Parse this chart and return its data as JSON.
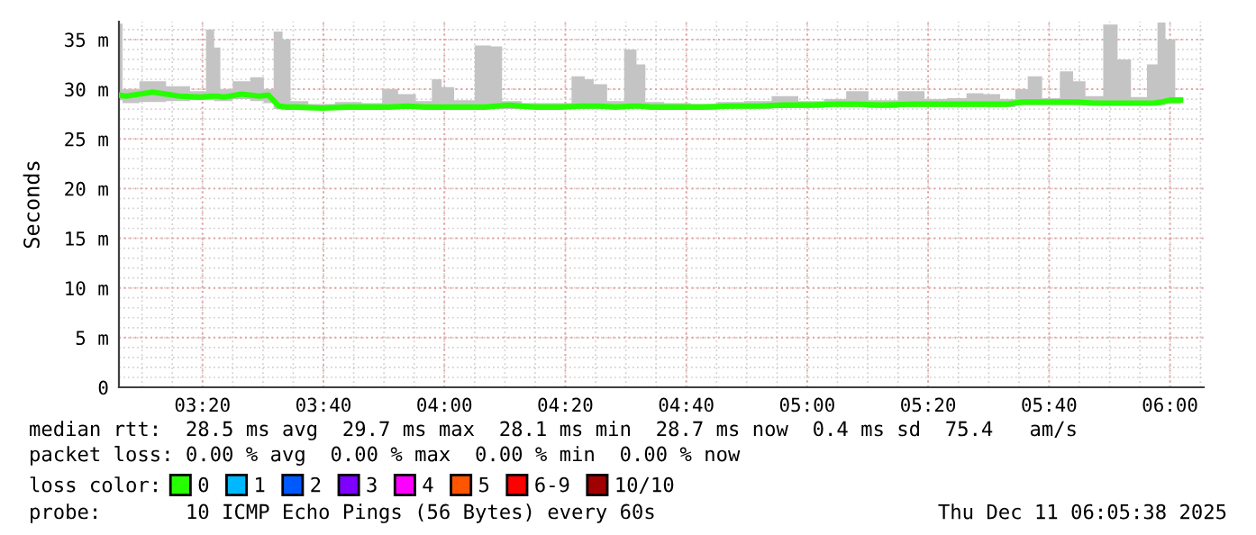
{
  "chart_data": {
    "type": "line",
    "ylabel": "Seconds",
    "legend_title": "loss color:",
    "legend": "bottom",
    "grid": true,
    "xlim": [
      3.103,
      6.093
    ],
    "ylim": [
      0,
      36.8
    ],
    "xticks": [
      {
        "value": 3.3333,
        "label": "03:20"
      },
      {
        "value": 3.6667,
        "label": "03:40"
      },
      {
        "value": 4,
        "label": "04:00"
      },
      {
        "value": 4.3333,
        "label": "04:20"
      },
      {
        "value": 4.6667,
        "label": "04:40"
      },
      {
        "value": 5,
        "label": "05:00"
      },
      {
        "value": 5.3333,
        "label": "05:20"
      },
      {
        "value": 5.6667,
        "label": "05:40"
      },
      {
        "value": 6,
        "label": "06:00"
      }
    ],
    "yticks": [
      0,
      {
        "value": 5,
        "label": "5 m"
      },
      {
        "value": 10,
        "label": "10 m"
      },
      {
        "value": 15,
        "label": "15 m"
      },
      {
        "value": 20,
        "label": "20 m"
      },
      {
        "value": 25,
        "label": "25 m"
      },
      {
        "value": 30,
        "label": "30 m"
      },
      {
        "value": 35,
        "label": "35 m"
      }
    ],
    "x": [
      3.103,
      3.123,
      3.196,
      3.27,
      3.328,
      3.358,
      3.373,
      3.392,
      3.441,
      3.49,
      3.515,
      3.544,
      3.564,
      3.588,
      3.662,
      3.735,
      3.809,
      3.848,
      3.897,
      3.946,
      3.985,
      4.0,
      4.054,
      4.113,
      4.142,
      4.176,
      4.25,
      4.324,
      4.377,
      4.397,
      4.426,
      4.471,
      4.52,
      4.539,
      4.569,
      4.642,
      4.716,
      4.789,
      4.863,
      4.941,
      5.01,
      5.083,
      5.132,
      5.206,
      5.294,
      5.353,
      5.417,
      5.461,
      5.51,
      5.554,
      5.593,
      5.623,
      5.672,
      5.721,
      5.745,
      5.789,
      5.843,
      5.868,
      5.917,
      5.956,
      5.975,
      6.0,
      6.029
    ],
    "series": [
      {
        "name": "0",
        "color": "#26ff00",
        "values": [
          29.4,
          29.3,
          29.7,
          29.3,
          29.2,
          29.3,
          29.3,
          29.2,
          29.5,
          29.3,
          29.4,
          28.3,
          28.2,
          28.2,
          28.1,
          28.2,
          28.2,
          28.2,
          28.3,
          28.2,
          28.2,
          28.2,
          28.2,
          28.2,
          28.3,
          28.4,
          28.2,
          28.2,
          28.3,
          28.3,
          28.3,
          28.2,
          28.3,
          28.3,
          28.2,
          28.2,
          28.2,
          28.3,
          28.3,
          28.4,
          28.4,
          28.5,
          28.5,
          28.4,
          28.5,
          28.5,
          28.5,
          28.5,
          28.5,
          28.5,
          28.7,
          28.7,
          28.7,
          28.7,
          28.7,
          28.6,
          28.6,
          28.6,
          28.6,
          28.6,
          28.7,
          28.9,
          28.9
        ],
        "lower": [
          28.9,
          28.6,
          28.7,
          28.8,
          28.9,
          28.9,
          28.8,
          28.8,
          29.0,
          28.8,
          28.6,
          28.0,
          28.0,
          28.0,
          27.9,
          28.0,
          28.0,
          28.0,
          28.0,
          28.0,
          27.9,
          28.0,
          28.0,
          28.0,
          28.0,
          28.0,
          28.0,
          28.0,
          28.0,
          28.0,
          28.0,
          28.0,
          28.0,
          28.0,
          28.0,
          28.0,
          27.9,
          28.0,
          28.0,
          28.1,
          28.1,
          28.2,
          28.2,
          28.1,
          28.2,
          28.2,
          28.2,
          28.2,
          28.2,
          28.2,
          28.4,
          28.4,
          28.4,
          28.4,
          28.4,
          28.4,
          28.4,
          28.4,
          28.4,
          28.4,
          28.4,
          28.5,
          28.5
        ],
        "upper": [
          36.6,
          30.0,
          30.8,
          30.3,
          29.8,
          36.0,
          34.2,
          30.0,
          30.8,
          31.2,
          30.0,
          35.8,
          35.0,
          28.8,
          28.5,
          28.7,
          28.6,
          30.0,
          29.5,
          28.8,
          31.0,
          30.2,
          28.9,
          34.4,
          34.3,
          28.8,
          28.6,
          28.6,
          31.3,
          31.0,
          30.5,
          28.8,
          34.0,
          32.5,
          28.7,
          28.6,
          28.5,
          28.7,
          28.8,
          29.3,
          28.8,
          29.0,
          29.8,
          28.9,
          29.8,
          29.0,
          29.1,
          29.6,
          29.5,
          29.0,
          30.0,
          31.3,
          29.1,
          31.8,
          30.8,
          29.3,
          36.5,
          33.0,
          29.2,
          32.5,
          36.7,
          35.0,
          29.0
        ]
      },
      {
        "name": "1",
        "color": "#00b8ff",
        "values": [
          null,
          null,
          null,
          null,
          null,
          null,
          null,
          null,
          null,
          null,
          null,
          null,
          null,
          null,
          null,
          null,
          null,
          null,
          null,
          null,
          null,
          null,
          null,
          null,
          null,
          null,
          null,
          null,
          null,
          null,
          null,
          null,
          null,
          null,
          null,
          null,
          null,
          null,
          null,
          null,
          null,
          null,
          null,
          null,
          null,
          null,
          null,
          null,
          null,
          null,
          null,
          null,
          null,
          null,
          null,
          null,
          null,
          null,
          null,
          null,
          null,
          null,
          null
        ]
      },
      {
        "name": "2",
        "color": "#0059ff",
        "values": [
          null,
          null,
          null,
          null,
          null,
          null,
          null,
          null,
          null,
          null,
          null,
          null,
          null,
          null,
          null,
          null,
          null,
          null,
          null,
          null,
          null,
          null,
          null,
          null,
          null,
          null,
          null,
          null,
          null,
          null,
          null,
          null,
          null,
          null,
          null,
          null,
          null,
          null,
          null,
          null,
          null,
          null,
          null,
          null,
          null,
          null,
          null,
          null,
          null,
          null,
          null,
          null,
          null,
          null,
          null,
          null,
          null,
          null,
          null,
          null,
          null,
          null,
          null
        ]
      },
      {
        "name": "3",
        "color": "#7e00ff",
        "values": [
          null,
          null,
          null,
          null,
          null,
          null,
          null,
          null,
          null,
          null,
          null,
          null,
          null,
          null,
          null,
          null,
          null,
          null,
          null,
          null,
          null,
          null,
          null,
          null,
          null,
          null,
          null,
          null,
          null,
          null,
          null,
          null,
          null,
          null,
          null,
          null,
          null,
          null,
          null,
          null,
          null,
          null,
          null,
          null,
          null,
          null,
          null,
          null,
          null,
          null,
          null,
          null,
          null,
          null,
          null,
          null,
          null,
          null,
          null,
          null,
          null,
          null,
          null
        ]
      },
      {
        "name": "4",
        "color": "#ff00ff",
        "values": [
          null,
          null,
          null,
          null,
          null,
          null,
          null,
          null,
          null,
          null,
          null,
          null,
          null,
          null,
          null,
          null,
          null,
          null,
          null,
          null,
          null,
          null,
          null,
          null,
          null,
          null,
          null,
          null,
          null,
          null,
          null,
          null,
          null,
          null,
          null,
          null,
          null,
          null,
          null,
          null,
          null,
          null,
          null,
          null,
          null,
          null,
          null,
          null,
          null,
          null,
          null,
          null,
          null,
          null,
          null,
          null,
          null,
          null,
          null,
          null,
          null,
          null,
          null
        ]
      },
      {
        "name": "5",
        "color": "#ff5500",
        "values": [
          null,
          null,
          null,
          null,
          null,
          null,
          null,
          null,
          null,
          null,
          null,
          null,
          null,
          null,
          null,
          null,
          null,
          null,
          null,
          null,
          null,
          null,
          null,
          null,
          null,
          null,
          null,
          null,
          null,
          null,
          null,
          null,
          null,
          null,
          null,
          null,
          null,
          null,
          null,
          null,
          null,
          null,
          null,
          null,
          null,
          null,
          null,
          null,
          null,
          null,
          null,
          null,
          null,
          null,
          null,
          null,
          null,
          null,
          null,
          null,
          null,
          null,
          null
        ]
      },
      {
        "name": "6-9",
        "color": "#ff0000",
        "values": [
          null,
          null,
          null,
          null,
          null,
          null,
          null,
          null,
          null,
          null,
          null,
          null,
          null,
          null,
          null,
          null,
          null,
          null,
          null,
          null,
          null,
          null,
          null,
          null,
          null,
          null,
          null,
          null,
          null,
          null,
          null,
          null,
          null,
          null,
          null,
          null,
          null,
          null,
          null,
          null,
          null,
          null,
          null,
          null,
          null,
          null,
          null,
          null,
          null,
          null,
          null,
          null,
          null,
          null,
          null,
          null,
          null,
          null,
          null,
          null,
          null,
          null,
          null
        ]
      },
      {
        "name": "10/10",
        "color": "#a10000",
        "values": [
          null,
          null,
          null,
          null,
          null,
          null,
          null,
          null,
          null,
          null,
          null,
          null,
          null,
          null,
          null,
          null,
          null,
          null,
          null,
          null,
          null,
          null,
          null,
          null,
          null,
          null,
          null,
          null,
          null,
          null,
          null,
          null,
          null,
          null,
          null,
          null,
          null,
          null,
          null,
          null,
          null,
          null,
          null,
          null,
          null,
          null,
          null,
          null,
          null,
          null,
          null,
          null,
          null,
          null,
          null,
          null,
          null,
          null,
          null,
          null,
          null,
          null,
          null
        ]
      }
    ],
    "annotations": [
      "median rtt:  28.5 ms avg  29.7 ms max  28.1 ms min  28.7 ms now  0.4 ms sd  75.4   am/s",
      "packet loss: 0.00 % avg  0.00 % max  0.00 % min  0.00 % now",
      "probe:       10 ICMP Echo Pings (56 Bytes) every 60s",
      "Thu Dec 11 06:05:38 2025"
    ]
  }
}
